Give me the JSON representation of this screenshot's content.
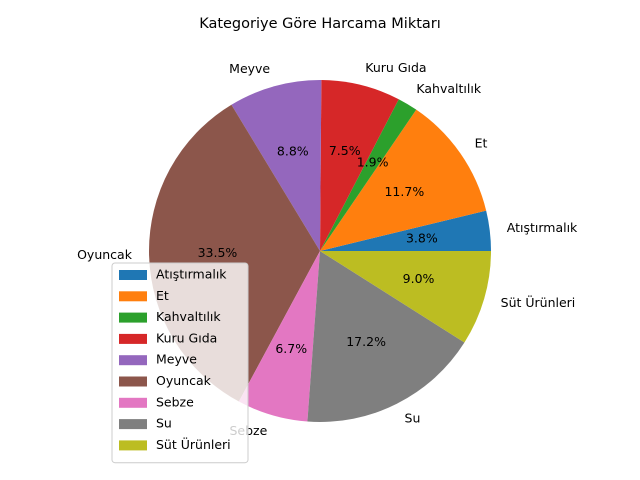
{
  "chart_data": {
    "type": "pie",
    "title": "Kategoriye Göre Harcama Miktarı",
    "categories": [
      "Atıştırmalık",
      "Et",
      "Kahvaltılık",
      "Kuru Gıda",
      "Meyve",
      "Oyuncak",
      "Sebze",
      "Su",
      "Süt Ürünleri"
    ],
    "values": [
      3.8,
      11.7,
      1.9,
      7.5,
      8.8,
      33.5,
      6.7,
      17.2,
      9.0
    ],
    "value_labels": [
      "3.8%",
      "11.7%",
      "1.9%",
      "7.5%",
      "8.8%",
      "33.5%",
      "6.7%",
      "17.2%",
      "9.0%"
    ],
    "colors": [
      "#1f77b4",
      "#ff7f0e",
      "#2ca02c",
      "#d62728",
      "#9467bd",
      "#8c564b",
      "#e377c2",
      "#7f7f7f",
      "#bcbd22"
    ],
    "start_angle_deg": 0,
    "direction": "counterclockwise",
    "legend": "lower-left"
  }
}
